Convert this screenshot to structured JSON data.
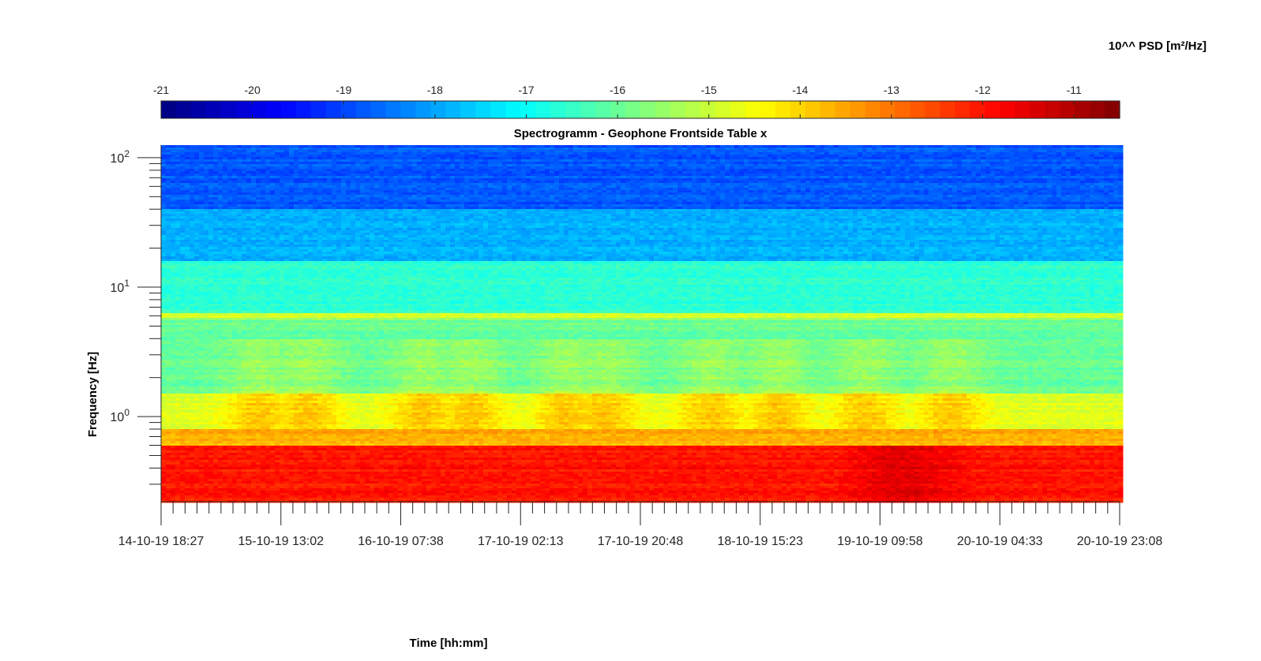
{
  "chart_data": {
    "type": "heatmap",
    "title": "Spectrogramm - Geophone Frontside Table x",
    "xlabel": "Time [hh:mm]",
    "ylabel": "Frequency [Hz]",
    "yscale": "log",
    "ylim": [
      0.22,
      125
    ],
    "y_ticks": [
      {
        "value": 1,
        "base": "10",
        "exp": "0"
      },
      {
        "value": 10,
        "base": "10",
        "exp": "1"
      },
      {
        "value": 100,
        "base": "10",
        "exp": "2"
      }
    ],
    "x_tick_labels": [
      "14-10-19 18:27",
      "15-10-19 13:02",
      "16-10-19 07:38",
      "17-10-19 02:13",
      "17-10-19 20:48",
      "18-10-19 15:23",
      "19-10-19 09:58",
      "20-10-19 04:33",
      "20-10-19 23:08"
    ],
    "colorbar": {
      "label": "10^^ PSD [m²/Hz]",
      "colormap": "jet",
      "range": [
        -21,
        -10.5
      ],
      "ticks": [
        -21,
        -20,
        -19,
        -18,
        -17,
        -16,
        -15,
        -14,
        -13,
        -12,
        -11
      ]
    },
    "grid": false,
    "description_of_field": {
      "frequency_bands_log10_psd": [
        {
          "f_min": 0.22,
          "f_max": 0.6,
          "log10_psd": -12.0
        },
        {
          "f_min": 0.6,
          "f_max": 0.8,
          "log10_psd": -13.6
        },
        {
          "f_min": 0.8,
          "f_max": 1.5,
          "log10_psd": -14.8
        },
        {
          "f_min": 1.5,
          "f_max": 5.5,
          "log10_psd": -16.0
        },
        {
          "f_min": 5.7,
          "f_max": 6.3,
          "log10_psd": -14.9
        },
        {
          "f_min": 6.3,
          "f_max": 16,
          "log10_psd": -16.6
        },
        {
          "f_min": 16,
          "f_max": 40,
          "log10_psd": -17.8
        },
        {
          "f_min": 40,
          "f_max": 125,
          "log10_psd": -18.8
        }
      ]
    }
  },
  "colors": {
    "axis": "#262626",
    "background": "#ffffff"
  }
}
